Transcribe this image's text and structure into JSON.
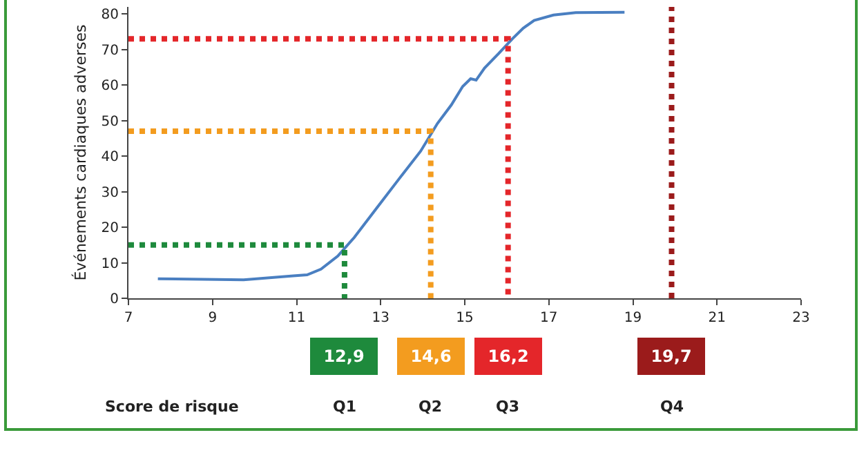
{
  "chart_data": {
    "type": "line",
    "xlabel": "Score de risque",
    "ylabel": "Événements cardiaques adverses",
    "xlim": [
      7,
      23
    ],
    "xticks": [
      7,
      9,
      11,
      13,
      15,
      17,
      19,
      21,
      23
    ],
    "ylim": [
      0,
      82
    ],
    "yticks": [
      0,
      10,
      20,
      30,
      40,
      50,
      60,
      70,
      80
    ],
    "grid": false,
    "marker": "none",
    "series": [
      {
        "color": "#4a7fc1",
        "line_style": "solid",
        "x": [
          7.7,
          9.74,
          10.92,
          11.25,
          11.58,
          11.98,
          12.37,
          12.9,
          13.43,
          13.95,
          14.35,
          14.68,
          14.95,
          15.14,
          15.27,
          15.47,
          15.8,
          16.13,
          16.39,
          16.65,
          17.11,
          17.64,
          18.8
        ],
        "values": [
          5.5,
          5.2,
          6.3,
          6.6,
          8.2,
          11.9,
          17.1,
          25.3,
          33.5,
          41.4,
          49.2,
          54.4,
          59.6,
          61.8,
          61.4,
          64.8,
          68.8,
          73,
          76,
          78.2,
          79.7,
          80.4,
          80.5
        ]
      },
      {
        "color": "#1e8a3c",
        "line_style": "dotted",
        "x": [
          7,
          12.14,
          12.14
        ],
        "values": [
          15,
          15,
          0
        ]
      },
      {
        "color": "#f39c1f",
        "line_style": "dotted",
        "x": [
          7,
          14.19,
          14.19
        ],
        "values": [
          47,
          47,
          0
        ]
      },
      {
        "color": "#e4262a",
        "line_style": "dotted",
        "x": [
          7,
          16.03,
          16.03
        ],
        "values": [
          73,
          73,
          0
        ]
      },
      {
        "color": "#9b1b1b",
        "line_style": "dotted",
        "x": [
          19.92,
          19.92
        ],
        "values": [
          0,
          82
        ]
      }
    ],
    "annotations": [
      "12,9",
      "14,6",
      "16,2",
      "19,7",
      "Q1",
      "Q2",
      "Q3",
      "Q4"
    ]
  }
}
